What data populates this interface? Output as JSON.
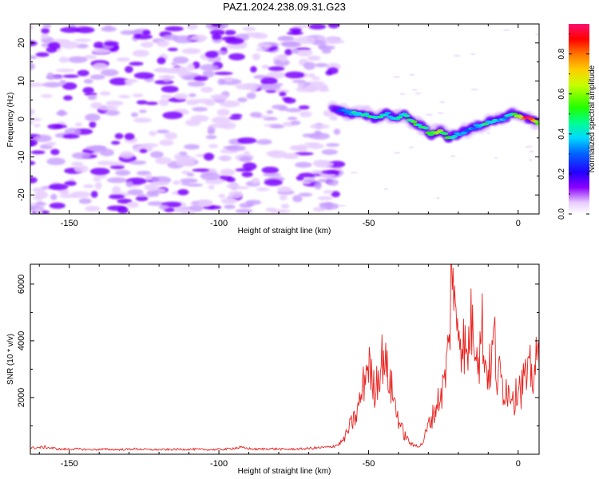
{
  "figure": {
    "title": "PAZ1.2024.238.09.31.G23"
  },
  "chart_data": [
    {
      "type": "heatmap",
      "title": "PAZ1.2024.238.09.31.G23",
      "xlabel": "Height of straight line (km)",
      "ylabel": "Frequency (Hz)",
      "xlim": [
        -163,
        7
      ],
      "ylim": [
        -25,
        25
      ],
      "xticks": [
        -150,
        -100,
        -50,
        0
      ],
      "yticks": [
        -20,
        -10,
        0,
        10,
        20
      ],
      "colorbar": {
        "label": "Normalized spectral amplitude",
        "range": [
          0,
          0.95
        ],
        "ticks": [
          0.0,
          0.2,
          0.4,
          0.6,
          0.8
        ],
        "tick_labels": [
          "0.0",
          "0.2",
          "0.4",
          "0.6",
          "0.8"
        ],
        "colormap": "rainbow-white",
        "placement": "right"
      },
      "noise_region": {
        "x_range": [
          -163,
          -60
        ],
        "amplitude": [
          0.05,
          0.35
        ],
        "color": "#7a00ff"
      },
      "signal_track": {
        "x": [
          -62,
          -58,
          -55,
          -50,
          -47,
          -44,
          -41,
          -38,
          -35,
          -32,
          -29,
          -26,
          -23,
          -20,
          -17,
          -14,
          -11,
          -8,
          -5,
          -2,
          1,
          4,
          7
        ],
        "frequency": [
          3,
          2,
          1.5,
          1,
          0,
          1.5,
          0,
          1,
          -1,
          -2,
          -4,
          -3,
          -5,
          -4,
          -3,
          -2,
          -1,
          -0.5,
          0,
          1.5,
          0.5,
          0,
          -1
        ],
        "amplitude": [
          0.25,
          0.35,
          0.4,
          0.45,
          0.45,
          0.35,
          0.45,
          0.4,
          0.5,
          0.45,
          0.5,
          0.55,
          0.5,
          0.35,
          0.3,
          0.35,
          0.45,
          0.4,
          0.35,
          0.45,
          0.6,
          0.95,
          0.5
        ]
      }
    },
    {
      "type": "line",
      "xlabel": "Height of straight line (km)",
      "ylabel": "SNR (10 * v/v)",
      "xlim": [
        -163,
        7
      ],
      "ylim": [
        0,
        6700
      ],
      "xticks": [
        -150,
        -100,
        -50,
        0
      ],
      "yticks": [
        2000,
        4000,
        6000
      ],
      "grid": false,
      "series": [
        {
          "color": "#e8231f",
          "x": [
            -163,
            -158,
            -153,
            -148,
            -143,
            -138,
            -133,
            -128,
            -123,
            -118,
            -113,
            -108,
            -103,
            -98,
            -93,
            -88,
            -83,
            -78,
            -73,
            -68,
            -63,
            -60,
            -58,
            -56,
            -54,
            -53,
            -52,
            -51,
            -50,
            -49,
            -48,
            -47,
            -46,
            -45,
            -44,
            -43,
            -42,
            -41,
            -40,
            -39,
            -38,
            -37,
            -36,
            -35,
            -34,
            -33,
            -32,
            -31,
            -30,
            -29,
            -28,
            -27,
            -26,
            -25,
            -24,
            -23,
            -22.5,
            -22,
            -21.5,
            -21,
            -20,
            -19,
            -18,
            -17,
            -16,
            -15,
            -14,
            -13,
            -12,
            -11,
            -10,
            -9,
            -8,
            -7,
            -6,
            -5,
            -4,
            -3,
            -2,
            -1,
            0,
            1,
            2,
            3,
            4,
            5,
            6,
            7
          ],
          "y": [
            200,
            230,
            160,
            170,
            150,
            160,
            150,
            170,
            150,
            150,
            160,
            160,
            150,
            160,
            220,
            160,
            180,
            160,
            170,
            200,
            230,
            320,
            500,
            900,
            1200,
            1600,
            2000,
            2500,
            2900,
            2300,
            2000,
            2400,
            2700,
            3150,
            2600,
            2300,
            1900,
            1500,
            1100,
            800,
            600,
            500,
            350,
            280,
            300,
            260,
            350,
            600,
            900,
            1100,
            1300,
            1600,
            1800,
            2100,
            2700,
            3500,
            5000,
            6700,
            4800,
            4000,
            4200,
            3600,
            3400,
            2800,
            4100,
            3800,
            3700,
            3000,
            4000,
            2800,
            2600,
            2700,
            3800,
            2200,
            2500,
            2000,
            2200,
            1800,
            2100,
            1600,
            2400,
            2000,
            2500,
            2200,
            2600,
            2400,
            2800,
            3000
          ]
        }
      ]
    }
  ]
}
